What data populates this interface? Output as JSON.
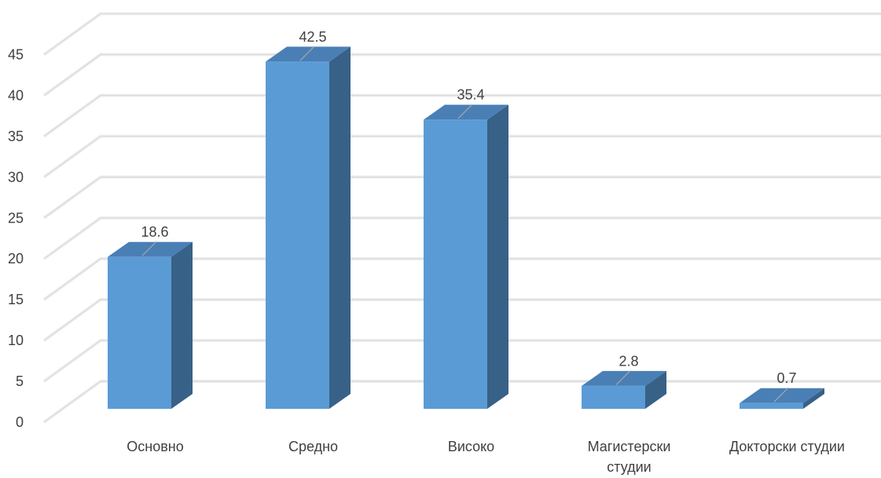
{
  "chart_data": {
    "type": "bar",
    "title": "",
    "xlabel": "",
    "ylabel": "",
    "categories": [
      "Основно",
      "Средно",
      "Високо",
      "Магистерски студии",
      "Докторски студии"
    ],
    "category_lines": [
      [
        "Основно"
      ],
      [
        "Средно"
      ],
      [
        "Високо"
      ],
      [
        "Магистерски",
        "студии"
      ],
      [
        "Докторски студии"
      ]
    ],
    "values": [
      18.6,
      42.5,
      35.4,
      2.8,
      0.7
    ],
    "data_labels": [
      "18.6",
      "42.5",
      "35.4",
      "2.8",
      "0.7"
    ],
    "ylim": [
      0,
      45
    ],
    "yticks": [
      0,
      5,
      10,
      15,
      20,
      25,
      30,
      35,
      40,
      45
    ],
    "grid": true,
    "three_d": true,
    "legend": "none",
    "colors": {
      "bar_front": "#5b9bd5",
      "bar_top": "#4a7fb5",
      "bar_side": "#386187",
      "gridline": "#d9d9d9",
      "axis_text": "#404040",
      "label_text": "#404040",
      "leader_line": "#a6a6a6"
    }
  }
}
